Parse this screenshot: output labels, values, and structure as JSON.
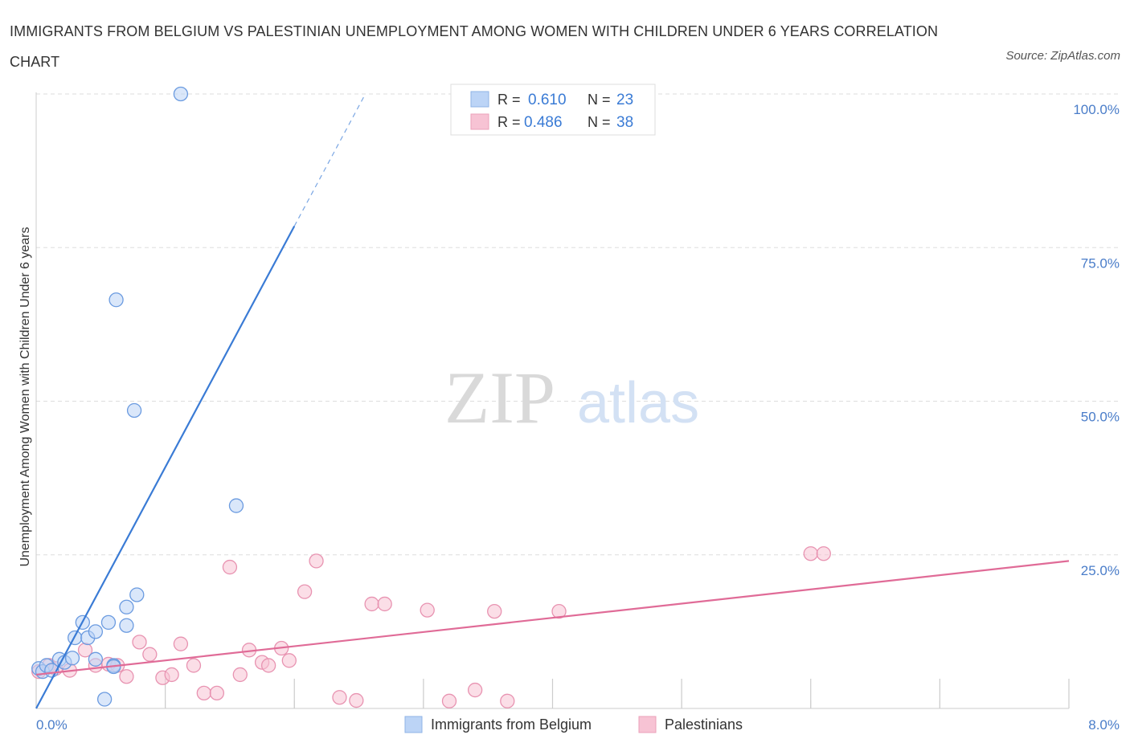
{
  "title": "IMMIGRANTS FROM BELGIUM VS PALESTINIAN UNEMPLOYMENT AMONG WOMEN WITH CHILDREN UNDER 6 YEARS CORRELATION CHART",
  "source": "Source: ZipAtlas.com",
  "watermark": {
    "zip": "ZIP",
    "atlas": "atlas"
  },
  "colors": {
    "blue": "#3a7bd5",
    "blue_fill": "#bcd4f6",
    "pink": "#e06b97",
    "pink_fill": "#f7c3d4",
    "axis_text": "#4a7dc9",
    "grid": "#dddddd"
  },
  "chart_data": {
    "type": "scatter",
    "xlabel": "",
    "ylabel": "Unemployment Among Women with Children Under 6 years",
    "xlim": [
      0,
      8
    ],
    "ylim": [
      0,
      100
    ],
    "x_tick_labels": {
      "min": "0.0%",
      "max": "8.0%"
    },
    "y_ticks": [
      {
        "value": 25,
        "label": "25.0%"
      },
      {
        "value": 50,
        "label": "50.0%"
      },
      {
        "value": 75,
        "label": "75.0%"
      },
      {
        "value": 100,
        "label": "100.0%"
      }
    ],
    "legend_position": "top-center",
    "stats": [
      {
        "r_label": "R =",
        "r": "0.610",
        "n_label": "N =",
        "n": "23"
      },
      {
        "r_label": "R =",
        "r": "0.486",
        "n_label": "N =",
        "n": "38"
      }
    ],
    "series": [
      {
        "name": "Immigrants from Belgium",
        "color": "#3a7bd5",
        "points": [
          [
            0.02,
            6.5
          ],
          [
            0.05,
            6.0
          ],
          [
            0.08,
            7.0
          ],
          [
            0.12,
            6.2
          ],
          [
            0.18,
            8.0
          ],
          [
            0.22,
            7.5
          ],
          [
            0.28,
            8.2
          ],
          [
            0.3,
            11.5
          ],
          [
            0.36,
            14.0
          ],
          [
            0.4,
            11.5
          ],
          [
            0.46,
            12.5
          ],
          [
            0.46,
            8.0
          ],
          [
            0.56,
            14.0
          ],
          [
            0.6,
            7.0
          ],
          [
            0.7,
            16.5
          ],
          [
            0.7,
            13.5
          ],
          [
            0.78,
            18.5
          ],
          [
            0.62,
            66.5
          ],
          [
            0.76,
            48.5
          ],
          [
            1.12,
            100.0
          ],
          [
            1.55,
            33.0
          ],
          [
            0.53,
            1.5
          ],
          [
            0.6,
            6.8
          ]
        ],
        "trend": {
          "x0": 0.0,
          "y0": 0.0,
          "x1": 2.0,
          "y1": 78.5,
          "dash_to_x": 2.55,
          "dash_to_y": 100.0
        }
      },
      {
        "name": "Palestinians",
        "color": "#e06b97",
        "points": [
          [
            0.02,
            6.0
          ],
          [
            0.1,
            7.0
          ],
          [
            0.15,
            6.5
          ],
          [
            0.26,
            6.2
          ],
          [
            0.38,
            9.5
          ],
          [
            0.46,
            7.0
          ],
          [
            0.56,
            7.2
          ],
          [
            0.63,
            7.0
          ],
          [
            0.7,
            5.2
          ],
          [
            0.8,
            10.8
          ],
          [
            0.88,
            8.8
          ],
          [
            0.98,
            5.0
          ],
          [
            1.05,
            5.5
          ],
          [
            1.12,
            10.5
          ],
          [
            1.22,
            7.0
          ],
          [
            1.3,
            2.5
          ],
          [
            1.4,
            2.5
          ],
          [
            1.5,
            23.0
          ],
          [
            1.58,
            5.5
          ],
          [
            1.65,
            9.5
          ],
          [
            1.75,
            7.5
          ],
          [
            1.8,
            7.0
          ],
          [
            1.9,
            9.8
          ],
          [
            1.96,
            7.8
          ],
          [
            2.08,
            19.0
          ],
          [
            2.17,
            24.0
          ],
          [
            2.35,
            1.8
          ],
          [
            2.48,
            1.3
          ],
          [
            2.6,
            17.0
          ],
          [
            2.7,
            17.0
          ],
          [
            3.03,
            16.0
          ],
          [
            3.2,
            1.2
          ],
          [
            3.4,
            3.0
          ],
          [
            3.55,
            15.8
          ],
          [
            3.65,
            1.2
          ],
          [
            4.05,
            15.8
          ],
          [
            6.0,
            25.2
          ],
          [
            6.1,
            25.2
          ]
        ],
        "trend": {
          "x0": 0.0,
          "y0": 5.5,
          "x1": 8.0,
          "y1": 24.0
        }
      }
    ]
  }
}
